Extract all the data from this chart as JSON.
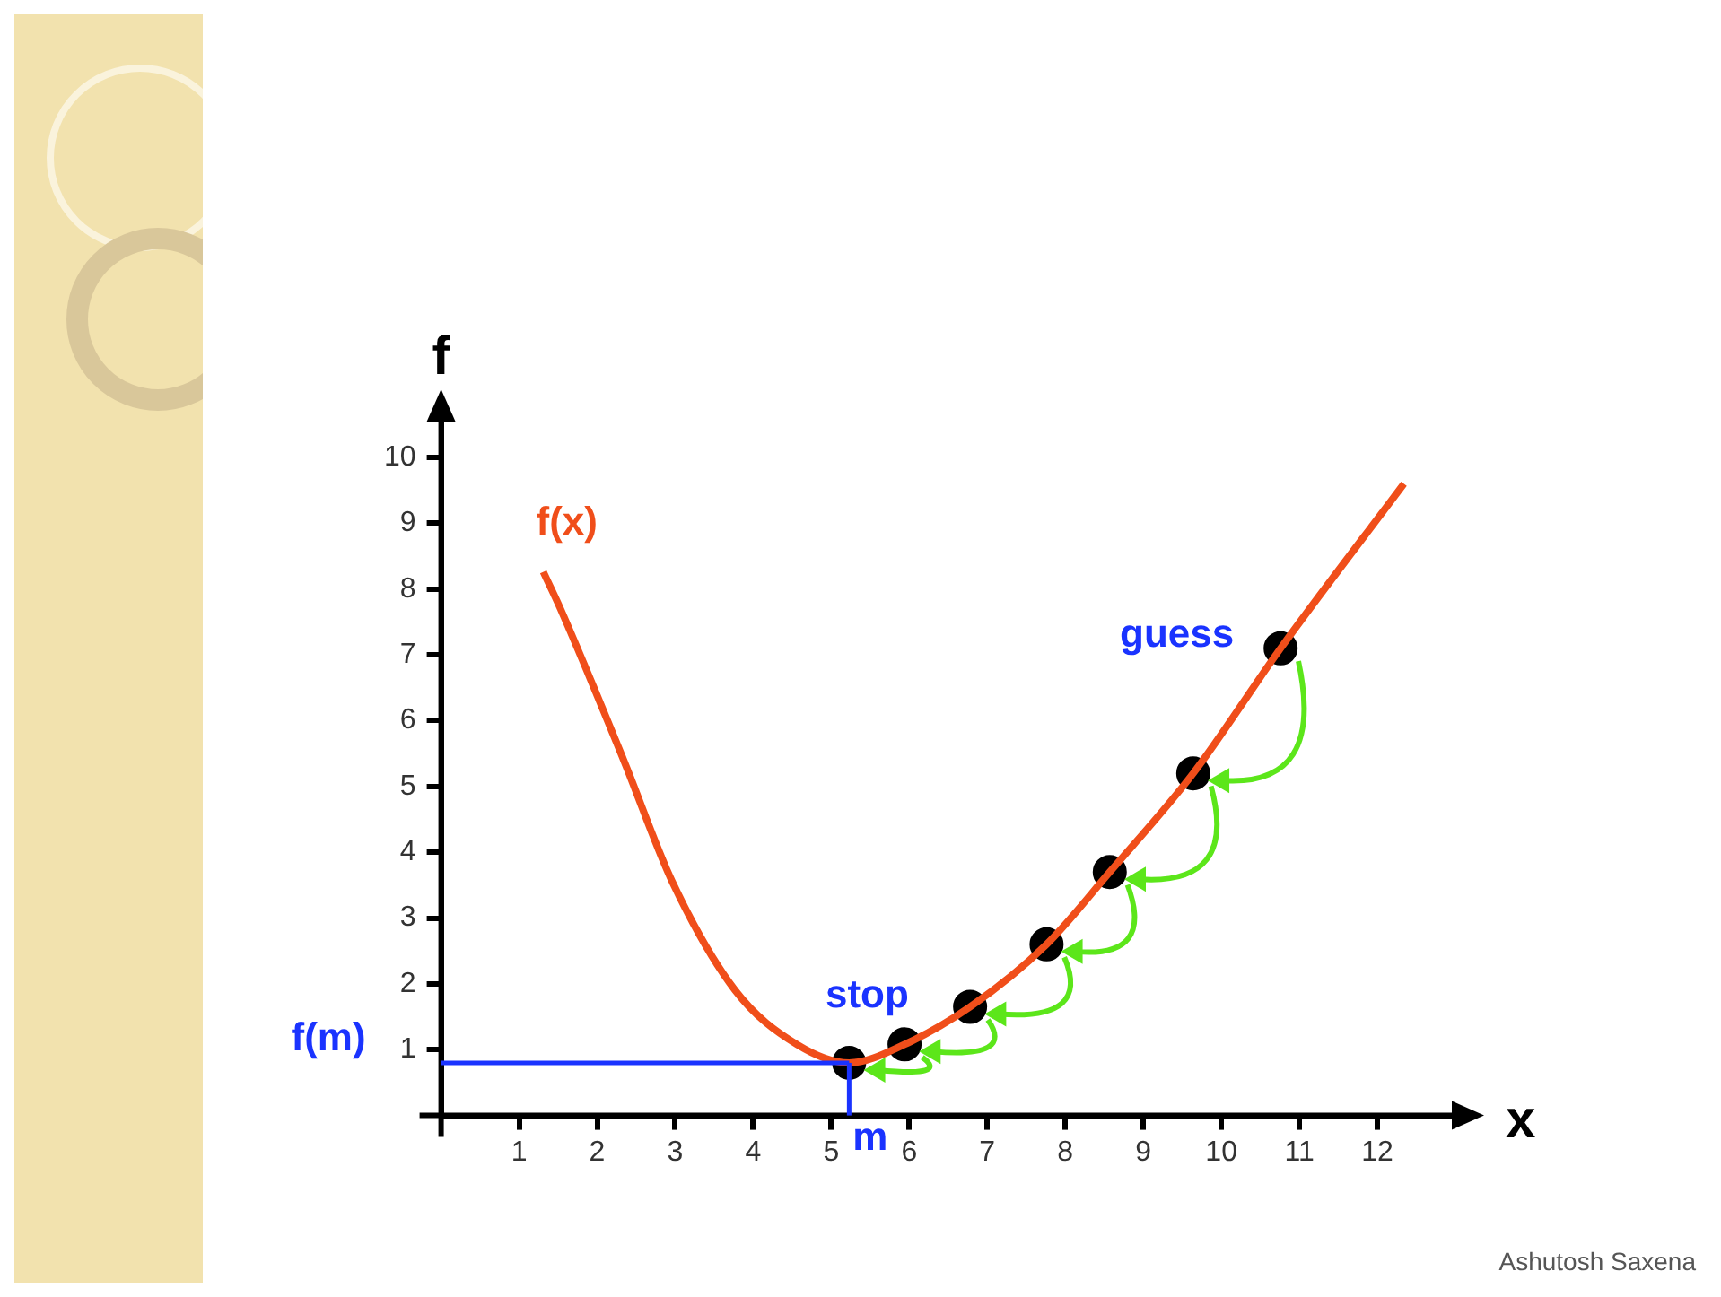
{
  "chart_data": {
    "type": "line",
    "xlabel": "x",
    "ylabel": "f",
    "xlim": [
      0,
      13
    ],
    "ylim": [
      0,
      10.6
    ],
    "xticks": [
      1,
      2,
      3,
      4,
      5,
      6,
      7,
      8,
      9,
      10,
      11,
      12
    ],
    "yticks": [
      1,
      2,
      3,
      4,
      5,
      6,
      7,
      8,
      9,
      10
    ],
    "grid": false,
    "legend": false,
    "series": [
      {
        "name": "f(x)",
        "marker": "none",
        "color": "#f04e1a",
        "x": [
          1.31,
          1.53,
          2.34,
          2.96,
          3.77,
          4.56,
          5.23,
          5.94,
          6.78,
          7.76,
          8.57,
          9.64,
          10.76,
          12.34
        ],
        "values": [
          8.26,
          7.7,
          5.4,
          3.56,
          1.9,
          1.08,
          0.8,
          1.08,
          1.65,
          2.6,
          3.7,
          5.2,
          7.1,
          9.6
        ]
      },
      {
        "type": "scatter",
        "marker": "circle",
        "color": "#000000",
        "x": [
          10.76,
          9.64,
          8.57,
          7.76,
          6.78,
          5.94,
          5.23
        ],
        "values": [
          7.1,
          5.2,
          3.7,
          2.6,
          1.65,
          1.08,
          0.8
        ]
      }
    ],
    "ref_lines": [
      {
        "axis": "y",
        "value": 0.8,
        "label": "f(m)",
        "color": "#1a33ff"
      },
      {
        "axis": "x",
        "value": 5.23,
        "label": "m",
        "color": "#1a33ff"
      }
    ],
    "annotations": [
      {
        "text": "guess",
        "x": 10.76,
        "y": 7.1
      },
      {
        "text": "stop",
        "x": 5.23,
        "y": 0.8
      },
      "Ashutosh Saxena"
    ]
  }
}
